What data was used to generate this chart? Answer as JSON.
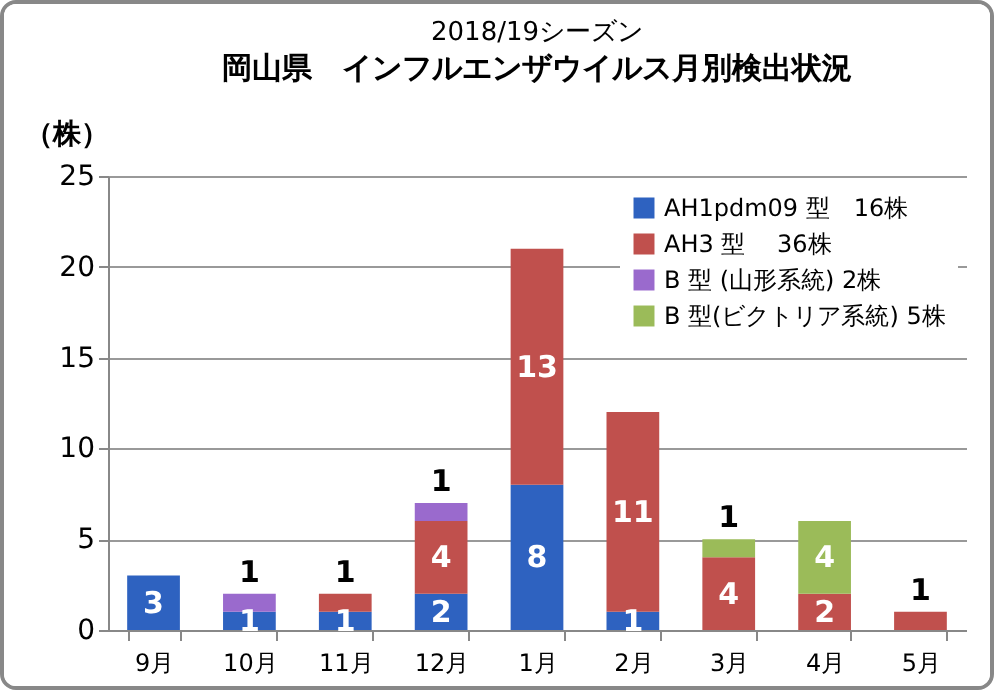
{
  "chart_data": {
    "type": "bar",
    "title": "2018/19シーズン",
    "subtitle": "岡山県　インフルエンザウイルス月別検出状況",
    "ylabel": "（株）",
    "categories": [
      "9月",
      "10月",
      "11月",
      "12月",
      "1月",
      "2月",
      "3月",
      "4月",
      "5月"
    ],
    "series": [
      {
        "name": "AH1pdm09 型　16株",
        "color": "#2e62c0",
        "values": [
          3,
          1,
          1,
          2,
          8,
          1,
          null,
          null,
          null
        ]
      },
      {
        "name": "AH3 型　 36株",
        "color": "#c0504d",
        "values": [
          null,
          null,
          1,
          4,
          13,
          11,
          4,
          2,
          1
        ]
      },
      {
        "name": "B 型 (山形系統) 2株",
        "color": "#9a6acd",
        "values": [
          null,
          1,
          null,
          1,
          null,
          null,
          null,
          null,
          null
        ]
      },
      {
        "name": "B 型(ビクトリア系統) 5株",
        "color": "#9bbb59",
        "values": [
          null,
          null,
          null,
          null,
          null,
          null,
          1,
          4,
          null
        ]
      }
    ],
    "stacked": true,
    "ylim": [
      0,
      25
    ],
    "yticks": [
      0,
      5,
      10,
      15,
      20,
      25
    ],
    "grid": "y",
    "legend": "top right",
    "data_labels": true
  }
}
